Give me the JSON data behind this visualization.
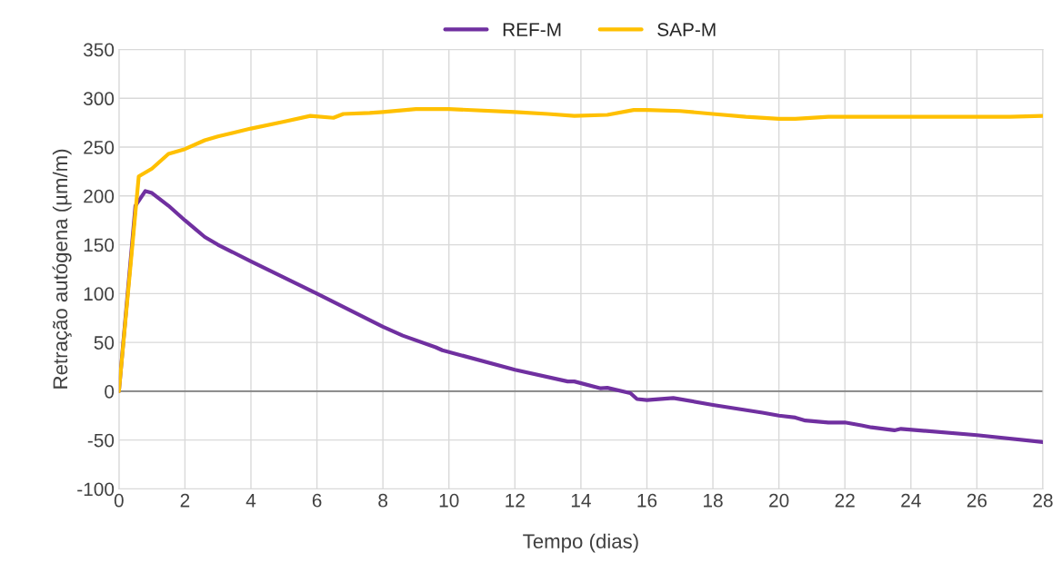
{
  "chart_data": {
    "type": "line",
    "xlabel": "Tempo (dias)",
    "ylabel": "Retração autógena (µm/m)",
    "xlim": [
      0,
      28
    ],
    "xticks": [
      0,
      2,
      4,
      6,
      8,
      10,
      12,
      14,
      16,
      18,
      20,
      22,
      24,
      26,
      28
    ],
    "ylim": [
      -100,
      350
    ],
    "yticks": [
      -100,
      -50,
      0,
      50,
      100,
      150,
      200,
      250,
      300,
      350
    ],
    "grid": true,
    "legend": "top",
    "line_style": "solid",
    "marker": "none",
    "ref_lines": [
      {
        "axis": "y",
        "value": 0,
        "color": "#7f7f7f"
      }
    ],
    "series": [
      {
        "name": "REF-M",
        "color": "#7030a0",
        "x": [
          0,
          0.5,
          0.8,
          1.0,
          1.5,
          2,
          2.6,
          3,
          4,
          6,
          8,
          8.6,
          9.6,
          9.8,
          12,
          13.6,
          13.8,
          14.6,
          14.8,
          15.5,
          15.7,
          16,
          16.8,
          18,
          19.5,
          20,
          20.5,
          20.8,
          21.5,
          22,
          22.5,
          22.8,
          23.5,
          23.7,
          26,
          28
        ],
        "values": [
          0,
          190,
          205,
          203,
          190,
          175,
          158,
          150,
          133,
          100,
          66,
          57,
          45,
          42,
          22,
          10,
          10,
          3,
          3.5,
          -2,
          -8,
          -9,
          -7,
          -14,
          -22,
          -25,
          -27,
          -30,
          -32,
          -32,
          -35,
          -37,
          -40,
          -38.5,
          -45,
          -52
        ]
      },
      {
        "name": "SAP-M",
        "color": "#ffc000",
        "x": [
          0,
          0.6,
          1,
          1.5,
          2,
          2.6,
          3,
          4,
          5,
          5.8,
          6.5,
          6.8,
          7.6,
          8,
          9,
          10,
          12,
          13,
          13.8,
          14.8,
          15.6,
          16,
          17,
          18,
          19,
          20,
          20.5,
          21.5,
          24,
          27,
          28
        ],
        "values": [
          0,
          220,
          228,
          243,
          248,
          257,
          261,
          269,
          276,
          282,
          280,
          284,
          285,
          286,
          289,
          289,
          286,
          284,
          282,
          283,
          288,
          288,
          287,
          284,
          281,
          279,
          279,
          281,
          281,
          281,
          282
        ]
      }
    ]
  }
}
